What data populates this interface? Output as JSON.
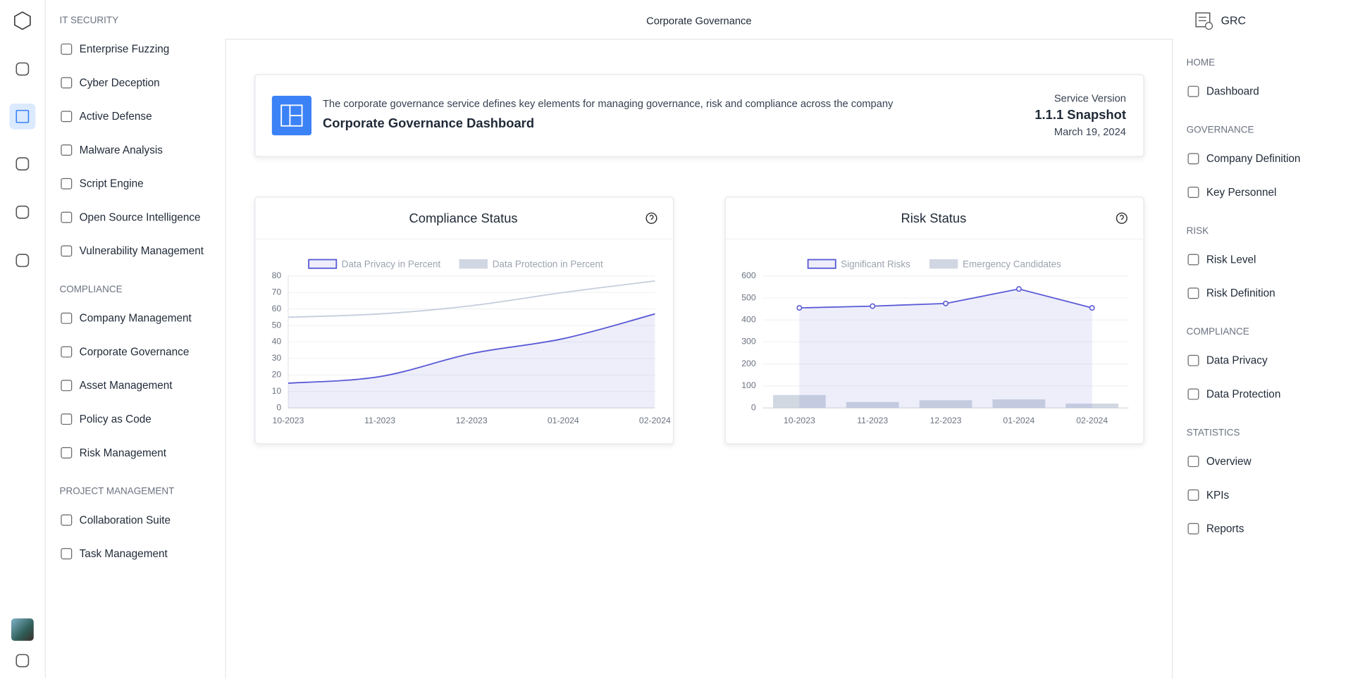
{
  "header": {
    "title": "Corporate Governance",
    "app": "GRC"
  },
  "left_nav": {
    "sections": [
      {
        "title": "IT SECURITY",
        "items": [
          "Enterprise Fuzzing",
          "Cyber Deception",
          "Active Defense",
          "Malware Analysis",
          "Script Engine",
          "Open Source Intelligence",
          "Vulnerability Management"
        ]
      },
      {
        "title": "COMPLIANCE",
        "items": [
          "Company Management",
          "Corporate Governance",
          "Asset Management",
          "Policy as Code",
          "Risk Management"
        ]
      },
      {
        "title": "PROJECT MANAGEMENT",
        "items": [
          "Collaboration Suite",
          "Task Management"
        ]
      }
    ]
  },
  "right_nav": {
    "sections": [
      {
        "title": "HOME",
        "items": [
          "Dashboard"
        ]
      },
      {
        "title": "GOVERNANCE",
        "items": [
          "Company Definition",
          "Key Personnel"
        ]
      },
      {
        "title": "RISK",
        "items": [
          "Risk Level",
          "Risk Definition"
        ]
      },
      {
        "title": "COMPLIANCE",
        "items": [
          "Data Privacy",
          "Data Protection"
        ]
      },
      {
        "title": "STATISTICS",
        "items": [
          "Overview",
          "KPIs",
          "Reports"
        ]
      }
    ]
  },
  "banner": {
    "description": "The corporate governance service defines key elements for managing governance, risk and compliance across the company",
    "title": "Corporate Governance Dashboard",
    "version_label": "Service Version",
    "version": "1.1.1 Snapshot",
    "date": "March 19, 2024"
  },
  "chart_data": [
    {
      "type": "line",
      "title": "Compliance Status",
      "categories": [
        "10-2023",
        "11-2023",
        "12-2023",
        "01-2024",
        "02-2024"
      ],
      "series": [
        {
          "name": "Data Privacy in Percent",
          "color": "#5b5bd6",
          "fill": true,
          "values": [
            15,
            19,
            33,
            42,
            57
          ]
        },
        {
          "name": "Data Protection in Percent",
          "color": "#c5cedb",
          "fill": false,
          "values": [
            55,
            57,
            62,
            70,
            77
          ]
        }
      ],
      "ylim": [
        0,
        80
      ],
      "yticks": [
        0,
        10,
        20,
        30,
        40,
        50,
        60,
        70,
        80
      ],
      "grid": true
    },
    {
      "type": "combo",
      "title": "Risk Status",
      "categories": [
        "10-2023",
        "11-2023",
        "12-2023",
        "01-2024",
        "02-2024"
      ],
      "series": [
        {
          "name": "Significant Risks",
          "type": "line",
          "color": "#5b5bd6",
          "fill": true,
          "values": [
            455,
            463,
            475,
            541,
            455
          ]
        },
        {
          "name": "Emergency Candidates",
          "type": "bar",
          "color": "#c5cedb",
          "values": [
            59,
            27,
            35,
            39,
            20
          ]
        }
      ],
      "ylim": [
        0,
        600
      ],
      "yticks": [
        0,
        100,
        200,
        300,
        400,
        500,
        600
      ],
      "grid": true
    }
  ]
}
